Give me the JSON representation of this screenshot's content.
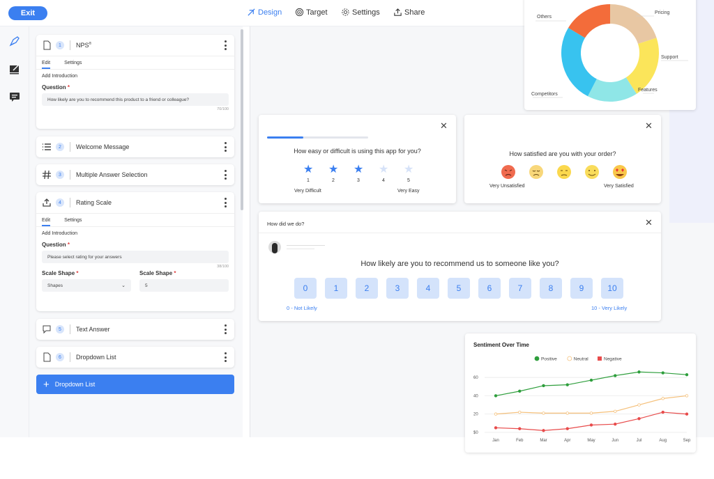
{
  "topbar": {
    "exit_label": "Exit",
    "tabs": [
      {
        "label": "Design",
        "icon": "design-icon",
        "active": true
      },
      {
        "label": "Target",
        "icon": "target-icon",
        "active": false
      },
      {
        "label": "Settings",
        "icon": "gear-icon",
        "active": false
      },
      {
        "label": "Share",
        "icon": "share-icon",
        "active": false
      }
    ]
  },
  "questions": [
    {
      "num": "1",
      "title": "NPS",
      "title_sup": "®",
      "tabs": [
        "Edit",
        "Settings"
      ],
      "add_intro": "Add Introduction",
      "question_label": "Question",
      "question_value": "How likely are you to recommend this product to a friend or colleague?",
      "counter": "70/100"
    },
    {
      "num": "2",
      "title": "Welcome Message"
    },
    {
      "num": "3",
      "title": "Multiple Answer Selection"
    },
    {
      "num": "4",
      "title": "Rating Scale",
      "tabs": [
        "Edit",
        "Settings"
      ],
      "add_intro": "Add Introduction",
      "question_label": "Question",
      "question_value": "Please select rating for your answers",
      "counter": "38/100",
      "shape_label": "Scale Shape",
      "shape_value": "Shapes",
      "shape_label2": "Scale Shape",
      "shape_value2": "5"
    },
    {
      "num": "5",
      "title": "Text Answer"
    },
    {
      "num": "6",
      "title": "Dropdown List"
    }
  ],
  "add_button_label": "Dropdown List",
  "rating_card": {
    "question": "How easy or difficult is using this app for you?",
    "progress": 0.2,
    "stars_filled": 3,
    "numbers": [
      "1",
      "2",
      "3",
      "4",
      "5"
    ],
    "low_label": "Very Difficult",
    "high_label": "Very Easy",
    "accent": "#3b7ff0"
  },
  "satisfaction_card": {
    "question": "How satisfied are you with your order?",
    "emoji_names": [
      "angry-face-icon",
      "unhappy-face-icon",
      "neutral-face-icon",
      "smiling-face-icon",
      "heart-eyes-face-icon"
    ],
    "low_label": "Very Unsatisfied",
    "high_label": "Very Satisfied"
  },
  "nps_card": {
    "header": "How did we do?",
    "question": "How likely are you to recommend us to someone like you?",
    "scores": [
      "0",
      "1",
      "2",
      "3",
      "4",
      "5",
      "6",
      "7",
      "8",
      "9",
      "10"
    ],
    "low_label": "0 - Not Likely",
    "high_label": "10 - Very Likely"
  },
  "donut": {
    "labels": [
      "Others",
      "Pricing",
      "Support",
      "Features",
      "Competitors"
    ]
  },
  "chart_data": {
    "type": "line",
    "title": "Sentiment Over Time",
    "categories": [
      "Jan",
      "Feb",
      "Mar",
      "Apr",
      "May",
      "Jun",
      "Jul",
      "Aug",
      "Sep"
    ],
    "series": [
      {
        "name": "Positive",
        "color": "#2e9e3c",
        "values": [
          40,
          45,
          51,
          52,
          57,
          62,
          66,
          65,
          63
        ]
      },
      {
        "name": "Neutral",
        "color": "#f5c07a",
        "values": [
          20,
          22,
          21,
          21,
          21,
          23,
          30,
          37,
          40
        ]
      },
      {
        "name": "Negative",
        "color": "#e84b4b",
        "values": [
          5,
          4,
          2,
          4,
          8,
          9,
          15,
          22,
          20
        ]
      }
    ],
    "yticks": [
      "$0",
      "20",
      "40",
      "60"
    ],
    "ylim": [
      0,
      70
    ],
    "grid": true,
    "legend": "top"
  }
}
